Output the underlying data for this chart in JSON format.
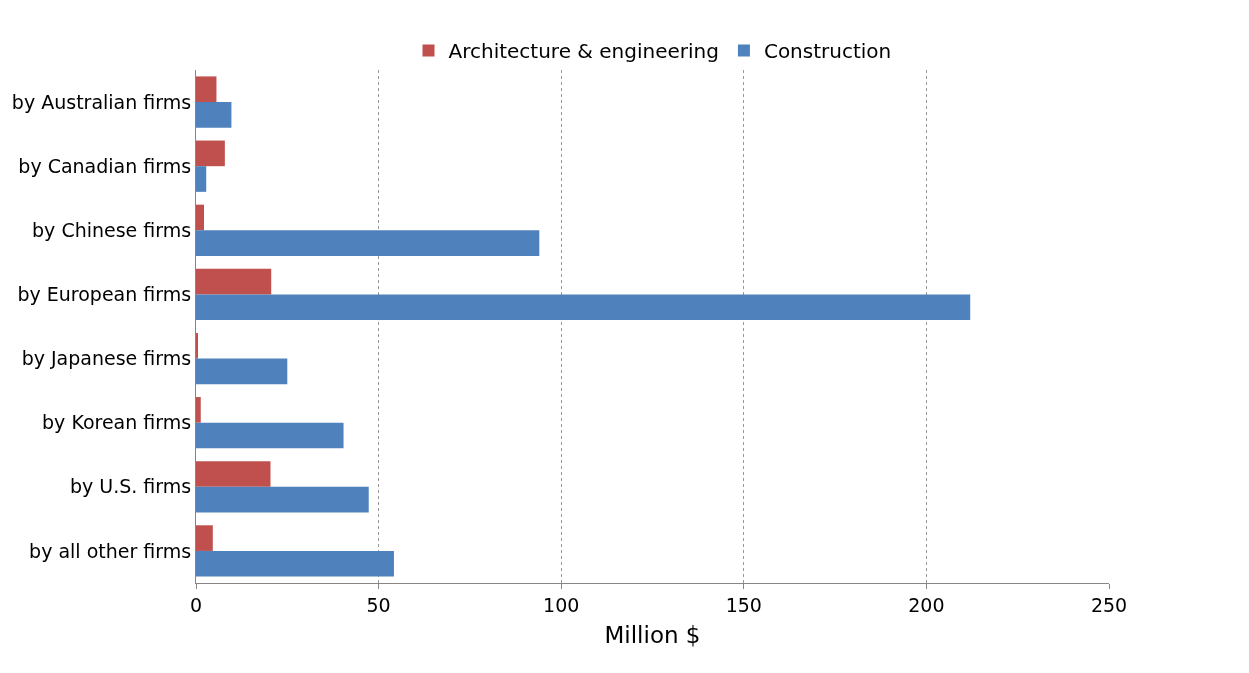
{
  "chart_data": {
    "type": "bar",
    "orientation": "horizontal",
    "xlabel": "Million $",
    "categories": [
      "by Australian firms",
      "by Canadian firms",
      "by Chinese firms",
      "by European firms",
      "by Japanese firms",
      "by Korean firms",
      "by U.S. firms",
      "by all other firms"
    ],
    "series": [
      {
        "name": "Architecture & engineering",
        "color": "#c0504d",
        "values": [
          5.6,
          7.9,
          2.2,
          20.6,
          0.3,
          1.3,
          20.4,
          4.6
        ]
      },
      {
        "name": "Construction",
        "color": "#4f81bd",
        "values": [
          9.7,
          2.8,
          94,
          212,
          25,
          40.4,
          47.3,
          54.2
        ]
      }
    ],
    "xlim": [
      0,
      250
    ],
    "xticks": [
      0,
      50,
      100,
      150,
      200,
      250
    ],
    "grid": "x",
    "legend": "top"
  }
}
